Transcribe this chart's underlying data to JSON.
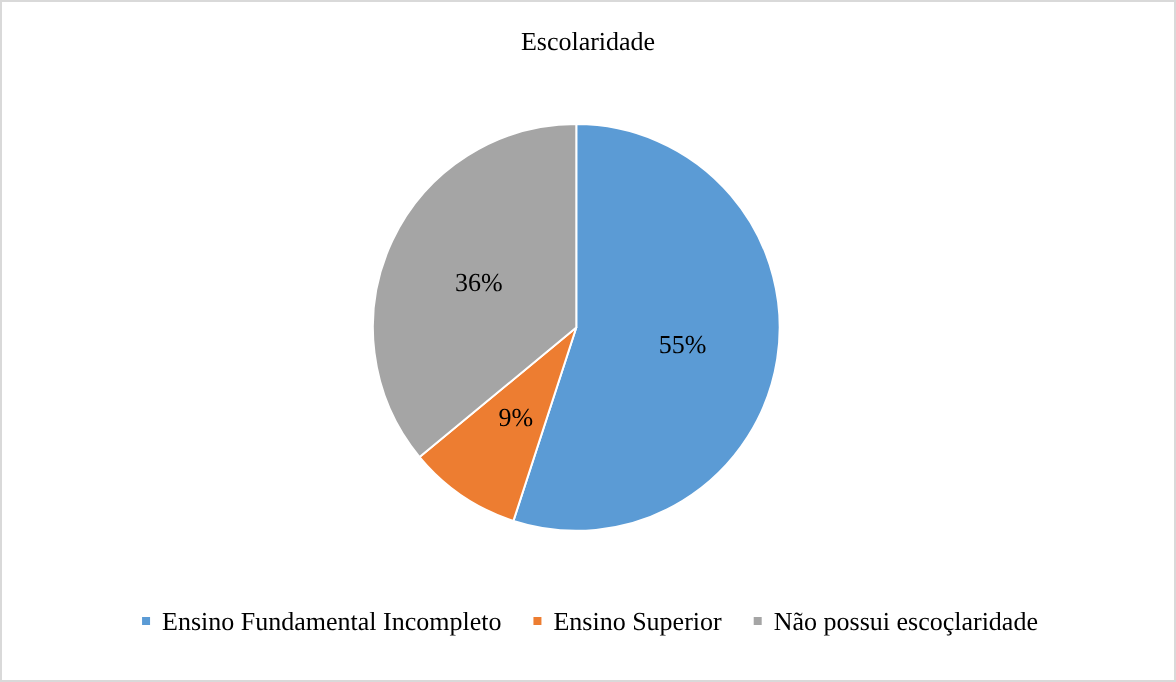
{
  "chart_data": {
    "type": "pie",
    "title": "Escolaridade",
    "categories": [
      "Ensino Fundamental Incompleto",
      "Ensino Superior",
      "Não possui escoçlaridade"
    ],
    "values": [
      55,
      9,
      36
    ],
    "colors": [
      "#5b9bd5",
      "#ed7d31",
      "#a5a5a5"
    ],
    "value_labels": [
      "55%",
      "9%",
      "36%"
    ],
    "legend": "bottom"
  }
}
